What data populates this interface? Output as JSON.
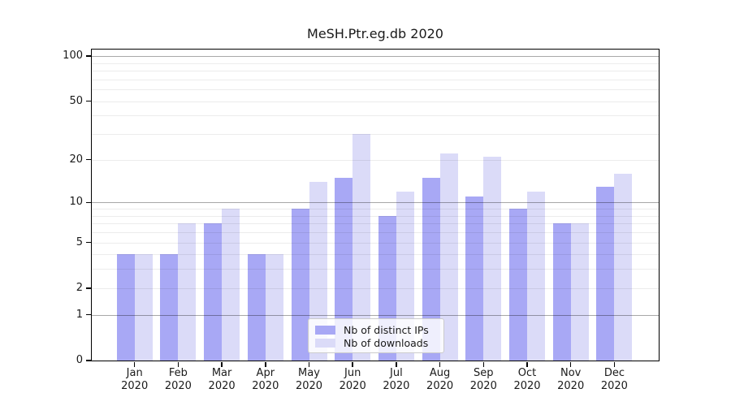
{
  "title": "MeSH.Ptr.eg.db 2020",
  "chart_data": {
    "type": "bar",
    "title": "MeSH.Ptr.eg.db 2020",
    "categories": [
      "Jan",
      "Feb",
      "Mar",
      "Apr",
      "May",
      "Jun",
      "Jul",
      "Aug",
      "Sep",
      "Oct",
      "Nov",
      "Dec"
    ],
    "category_year": "2020",
    "series": [
      {
        "name": "Nb of distinct IPs",
        "color": "#a8a8f5",
        "values": [
          4,
          4,
          7,
          4,
          9,
          15,
          8,
          15,
          11,
          9,
          7,
          13
        ]
      },
      {
        "name": "Nb of downloads",
        "color": "#dbdbf8",
        "values": [
          4,
          7,
          9,
          4,
          14,
          30,
          12,
          22,
          21,
          12,
          7,
          16
        ]
      }
    ],
    "yscale": "log10(1+x)",
    "ylim": [
      0,
      112
    ],
    "yticks": [
      0,
      1,
      2,
      5,
      10,
      20,
      50,
      100
    ],
    "grid_minor_values": [
      2,
      3,
      4,
      5,
      6,
      7,
      8,
      9,
      20,
      30,
      40,
      50,
      60,
      70,
      80,
      90
    ],
    "grid_major_values": [
      1,
      10,
      100
    ],
    "grid": "on",
    "legend_position": "inside lower center",
    "xlabel": "",
    "ylabel": ""
  }
}
